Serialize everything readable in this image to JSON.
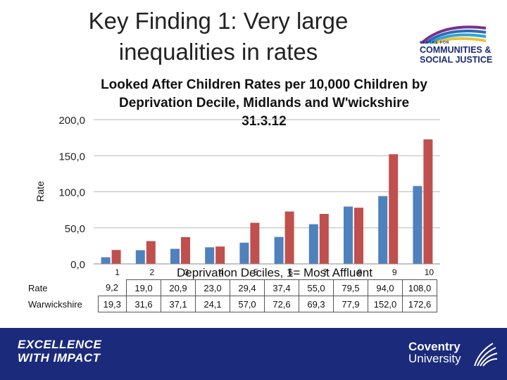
{
  "slide": {
    "title_line1": "Key Finding 1: Very large",
    "title_line2": "inequalities in rates"
  },
  "logos": {
    "top_right_line1": "CENTRE FOR",
    "top_right_line2": "COMMUNITIES &",
    "top_right_line3": "SOCIAL JUSTICE",
    "footer_left_line1": "EXCELLENCE",
    "footer_left_line2": "WITH IMPACT",
    "footer_right_line1": "Coventry",
    "footer_right_line2": "University"
  },
  "colors": {
    "series1": "#4F81BD",
    "series2": "#C0504D",
    "footer_bg": "#1B2A7B",
    "brand_navy": "#1A2A72"
  },
  "chart_data": {
    "type": "bar",
    "title_line1": "Looked After Children Rates per 10,000 Children by",
    "title_line2": "Deprivation Decile, Midlands and W'wickshire",
    "title_line3": "31.3.12",
    "ylabel": "Rate",
    "xlabel": "Deprivation Deciles, 1= Most Affluent",
    "ylim": [
      0,
      200
    ],
    "yticks": [
      "0,0",
      "50,0",
      "100,0",
      "150,0",
      "200,0"
    ],
    "categories": [
      "1",
      "2",
      "3",
      "4",
      "5",
      "6",
      "7",
      "8",
      "9",
      "10"
    ],
    "series": [
      {
        "name": "Rate",
        "values": [
          9.2,
          19.0,
          20.9,
          23.0,
          29.4,
          37.4,
          55.0,
          79.5,
          94.0,
          108.0
        ],
        "labels": [
          "9,2",
          "19,0",
          "20,9",
          "23,0",
          "29,4",
          "37,4",
          "55,0",
          "79,5",
          "94,0",
          "108,0"
        ]
      },
      {
        "name": "Warwickshire",
        "values": [
          19.3,
          31.6,
          37.1,
          24.1,
          57.0,
          72.6,
          69.3,
          77.9,
          152.0,
          172.6
        ],
        "labels": [
          "19,3",
          "31,6",
          "37,1",
          "24,1",
          "57,0",
          "72,6",
          "69,3",
          "77,9",
          "152,0",
          "172,6"
        ]
      }
    ]
  }
}
